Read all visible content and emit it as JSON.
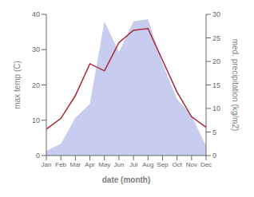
{
  "chart_data": {
    "type": "line",
    "categories": [
      "Jan",
      "Feb",
      "Mar",
      "Apr",
      "May",
      "Jun",
      "Jul",
      "Aug",
      "Sep",
      "Oct",
      "Nov",
      "Dec"
    ],
    "xlabel": "date (month)",
    "ylabel": "max temp (C)",
    "y2label": "med. precipitation (kg/m2)",
    "series": [
      {
        "type": "area",
        "axis": "y2",
        "color": "#c8ccee",
        "values": [
          1.0,
          2.5,
          8.0,
          11.0,
          28.5,
          22.0,
          28.5,
          29.0,
          19.5,
          12.0,
          8.5,
          2.0
        ]
      },
      {
        "type": "line",
        "color": "#aa2535",
        "values": [
          7.5,
          10.5,
          17.0,
          26.0,
          24.0,
          32.0,
          35.5,
          36.0,
          27.0,
          18.0,
          11.0,
          8.0
        ]
      }
    ],
    "ylim": [
      0,
      40
    ],
    "yticks": [
      0,
      10,
      20,
      30,
      40
    ],
    "y2lim": [
      0,
      30
    ],
    "y2ticks": [
      0,
      5,
      10,
      15,
      20,
      25,
      30
    ]
  }
}
